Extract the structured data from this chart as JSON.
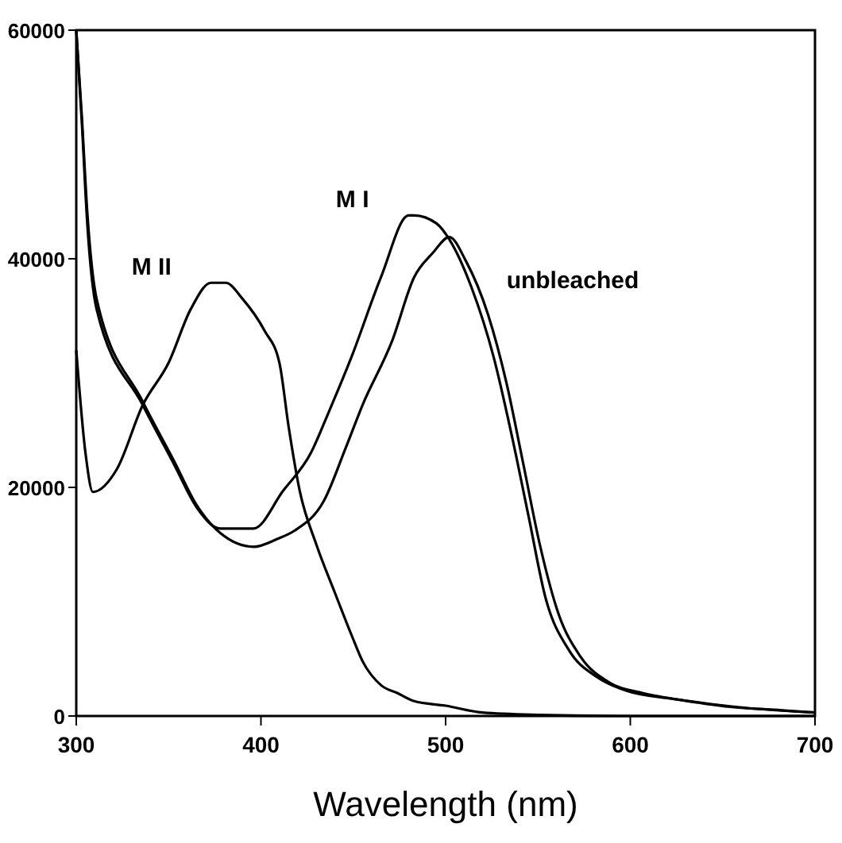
{
  "chart_data": {
    "type": "line",
    "xlabel": "Wavelength (nm)",
    "xlim": [
      300,
      700
    ],
    "ylim": [
      0,
      60000
    ],
    "xticks": [
      300,
      400,
      500,
      600,
      700
    ],
    "yticks": [
      0,
      20000,
      40000,
      60000
    ],
    "grid": false,
    "line_style": "solid",
    "series": [
      {
        "name": "M II",
        "color": "#000000",
        "x": [
          300,
          305,
          309,
          322,
          336,
          350,
          362,
          373,
          381,
          390,
          402,
          410,
          415,
          421,
          430,
          440,
          449,
          455,
          465,
          474,
          483,
          500,
          520,
          550,
          600,
          700
        ],
        "values": [
          32000,
          23000,
          19600,
          21600,
          27200,
          30900,
          35600,
          37900,
          37900,
          36500,
          33700,
          30900,
          25300,
          19700,
          15000,
          10800,
          7100,
          4800,
          2700,
          2000,
          1300,
          900,
          300,
          100,
          0,
          0
        ]
      },
      {
        "name": "M I",
        "color": "#000000",
        "x": [
          300,
          303,
          306,
          311,
          336,
          353,
          365,
          378,
          396,
          412,
          427,
          437,
          449,
          465,
          480,
          483,
          495,
          502,
          514,
          526,
          536,
          545,
          554,
          567,
          582,
          598,
          623,
          654,
          682,
          700
        ],
        "values": [
          60000,
          52000,
          43000,
          35600,
          27200,
          22000,
          18300,
          16400,
          16400,
          19700,
          23000,
          26700,
          31400,
          38400,
          43800,
          43800,
          43100,
          41700,
          37500,
          31400,
          24400,
          17400,
          10400,
          5700,
          3400,
          2200,
          1500,
          800,
          500,
          300
        ]
      },
      {
        "name": "unbleached",
        "color": "#000000",
        "x": [
          300,
          303,
          306,
          311,
          336,
          353,
          365,
          378,
          396,
          409,
          418,
          434,
          446,
          455,
          471,
          483,
          493,
          502,
          511,
          523,
          533,
          542,
          551,
          561,
          573,
          589,
          607,
          632,
          657,
          700
        ],
        "values": [
          60000,
          52500,
          44000,
          36500,
          27500,
          22300,
          18500,
          16000,
          14800,
          15500,
          16200,
          18800,
          23500,
          27200,
          32800,
          38400,
          40500,
          41900,
          39800,
          35100,
          29100,
          22100,
          15000,
          9000,
          5200,
          2900,
          2000,
          1300,
          800,
          300
        ]
      }
    ]
  }
}
